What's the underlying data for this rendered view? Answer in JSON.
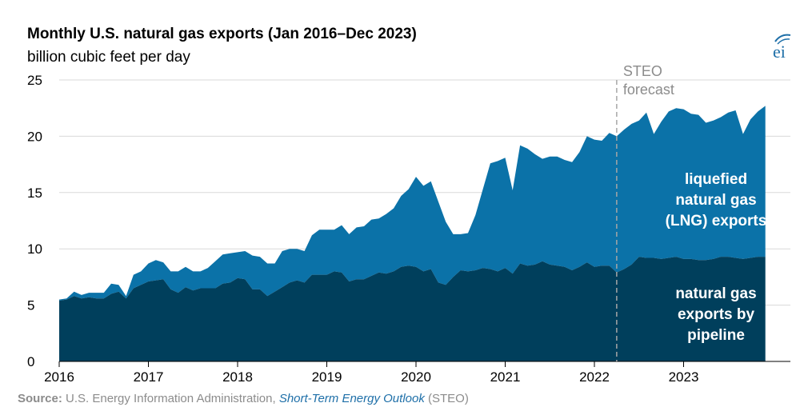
{
  "chart_data": {
    "type": "area",
    "stacked": true,
    "title": "Monthly U.S. natural gas exports (Jan 2016–Dec 2023)",
    "subtitle": "billion cubic feet per day",
    "x_start": "2016-01",
    "x_end": "2023-12",
    "xticks": [
      "2016",
      "2017",
      "2018",
      "2019",
      "2020",
      "2021",
      "2022",
      "2023"
    ],
    "ylim": [
      0,
      25
    ],
    "yticks": [
      0,
      5,
      10,
      15,
      20,
      25
    ],
    "grid": "horizontal",
    "forecast_start": "2022-04",
    "forecast_label": [
      "STEO",
      "forecast"
    ],
    "series": [
      {
        "name": "natural gas exports by pipeline",
        "label_lines": [
          "natural gas",
          "exports by",
          "pipeline"
        ],
        "color": "#003f5c",
        "values": [
          5.4,
          5.5,
          5.8,
          5.6,
          5.7,
          5.6,
          5.6,
          6.0,
          6.2,
          5.6,
          6.5,
          6.8,
          7.1,
          7.2,
          7.3,
          6.4,
          6.1,
          6.6,
          6.3,
          6.5,
          6.5,
          6.5,
          6.9,
          7.0,
          7.4,
          7.3,
          6.4,
          6.4,
          5.8,
          6.2,
          6.6,
          7.0,
          7.2,
          7.0,
          7.7,
          7.7,
          7.7,
          8.0,
          7.9,
          7.1,
          7.3,
          7.3,
          7.6,
          7.9,
          7.8,
          8.0,
          8.4,
          8.5,
          8.4,
          8.0,
          8.2,
          7.0,
          6.8,
          7.5,
          8.1,
          8.0,
          8.1,
          8.3,
          8.2,
          8.0,
          8.3,
          7.8,
          8.7,
          8.5,
          8.6,
          8.9,
          8.6,
          8.5,
          8.4,
          8.1,
          8.4,
          8.8,
          8.4,
          8.5,
          8.5,
          7.9,
          8.2,
          8.6,
          9.3,
          9.2,
          9.2,
          9.1,
          9.2,
          9.3,
          9.1,
          9.1,
          9.0,
          9.0,
          9.1,
          9.3,
          9.3,
          9.2,
          9.1,
          9.2,
          9.3,
          9.3
        ]
      },
      {
        "name": "liquefied natural gas (LNG) exports",
        "label_lines": [
          "liquefied",
          "natural gas",
          "(LNG) exports"
        ],
        "color": "#0b72a8",
        "values": [
          0.1,
          0.1,
          0.4,
          0.3,
          0.4,
          0.5,
          0.5,
          0.9,
          0.6,
          0.2,
          1.2,
          1.2,
          1.6,
          1.8,
          1.5,
          1.6,
          1.9,
          1.8,
          1.7,
          1.5,
          1.8,
          2.4,
          2.6,
          2.6,
          2.3,
          2.5,
          3.0,
          2.9,
          2.9,
          2.5,
          3.2,
          3.0,
          2.8,
          2.8,
          3.5,
          4.0,
          4.0,
          3.7,
          4.2,
          4.2,
          4.6,
          4.7,
          5.0,
          4.8,
          5.3,
          5.6,
          6.3,
          6.8,
          8.0,
          7.6,
          7.8,
          7.2,
          5.6,
          3.8,
          3.2,
          3.4,
          4.9,
          7.0,
          9.4,
          9.8,
          9.8,
          7.4,
          10.5,
          10.4,
          9.8,
          9.1,
          9.6,
          9.7,
          9.5,
          9.6,
          10.2,
          11.2,
          11.3,
          11.1,
          11.8,
          12.1,
          12.4,
          12.5,
          12.1,
          12.9,
          11.0,
          12.2,
          13.0,
          13.2,
          13.3,
          12.9,
          12.9,
          12.2,
          12.3,
          12.4,
          12.8,
          13.1,
          11.1,
          12.3,
          12.9,
          13.4
        ]
      }
    ],
    "source": {
      "label": "Source:",
      "text": " U.S. Energy Information Administration, ",
      "italic": "Short-Term Energy Outlook",
      "suffix": " (STEO)"
    }
  },
  "logo": {
    "text": "eia",
    "color": "#1e6fa8"
  }
}
